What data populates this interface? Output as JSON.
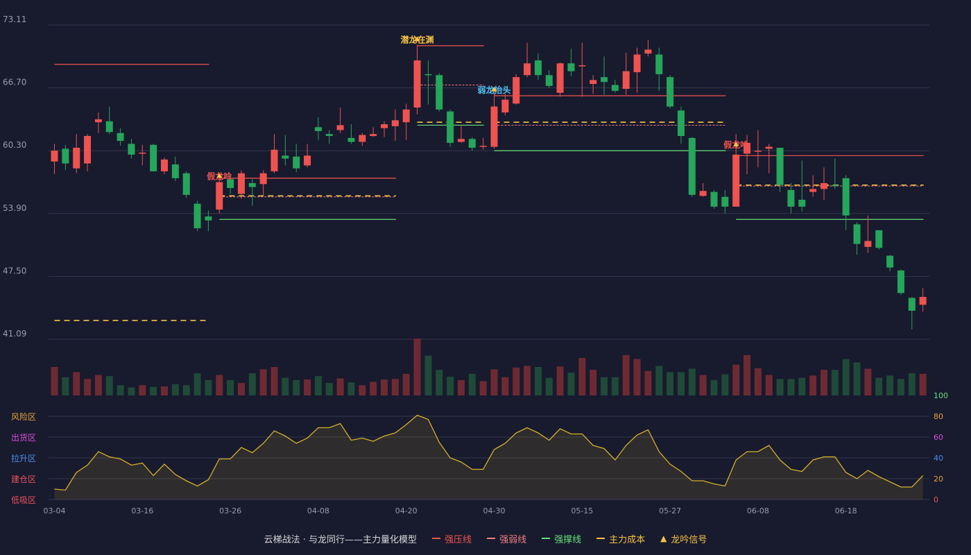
{
  "chart_data": {
    "type": "candlestick",
    "price_axis": {
      "ticks": [
        "73.11",
        "66.70",
        "60.30",
        "53.90",
        "47.50",
        "41.09"
      ],
      "ylim": [
        41.09,
        73.11
      ]
    },
    "x_labels": [
      {
        "i": 0,
        "text": "03-04"
      },
      {
        "i": 8,
        "text": "03-16"
      },
      {
        "i": 16,
        "text": "03-26"
      },
      {
        "i": 24,
        "text": "04-08"
      },
      {
        "i": 32,
        "text": "04-20"
      },
      {
        "i": 40,
        "text": "04-30"
      },
      {
        "i": 48,
        "text": "05-15"
      },
      {
        "i": 56,
        "text": "05-27"
      },
      {
        "i": 64,
        "text": "06-08"
      },
      {
        "i": 72,
        "text": "06-18"
      }
    ],
    "candles": [
      [
        59.2,
        60.3,
        61.0,
        57.9
      ],
      [
        60.5,
        59.0,
        60.9,
        58.3
      ],
      [
        58.5,
        60.6,
        62.0,
        58.0
      ],
      [
        59.0,
        61.8,
        62.0,
        58.2
      ],
      [
        63.2,
        63.5,
        64.2,
        62.1
      ],
      [
        63.3,
        62.2,
        64.8,
        62.0
      ],
      [
        62.1,
        61.3,
        62.6,
        60.8
      ],
      [
        61.0,
        59.9,
        61.5,
        59.5
      ],
      [
        60.0,
        60.1,
        60.9,
        58.8
      ],
      [
        60.9,
        58.2,
        61.0,
        58.2
      ],
      [
        58.2,
        59.4,
        59.6,
        57.9
      ],
      [
        58.9,
        57.5,
        59.7,
        57.2
      ],
      [
        58.0,
        55.8,
        58.2,
        55.5
      ],
      [
        54.9,
        52.4,
        55.2,
        52.1
      ],
      [
        53.6,
        53.2,
        54.2,
        52.1
      ],
      [
        54.3,
        57.1,
        57.5,
        53.9
      ],
      [
        57.4,
        56.5,
        57.9,
        55.9
      ],
      [
        55.9,
        58.0,
        58.3,
        55.4
      ],
      [
        57.0,
        56.6,
        57.4,
        54.7
      ],
      [
        56.9,
        58.0,
        58.3,
        55.8
      ],
      [
        58.2,
        60.4,
        62.0,
        58.0
      ],
      [
        59.8,
        59.5,
        61.9,
        58.8
      ],
      [
        59.7,
        58.5,
        61.0,
        58.1
      ],
      [
        58.8,
        59.8,
        61.0,
        58.6
      ],
      [
        62.7,
        62.3,
        63.7,
        61.4
      ],
      [
        62.0,
        61.8,
        62.4,
        61.0
      ],
      [
        62.4,
        62.9,
        64.7,
        62.1
      ],
      [
        61.6,
        61.2,
        63.0,
        61.0
      ],
      [
        61.2,
        61.9,
        62.1,
        60.8
      ],
      [
        61.8,
        62.0,
        62.7,
        61.7
      ],
      [
        62.6,
        63.0,
        63.3,
        61.7
      ],
      [
        62.8,
        63.4,
        64.5,
        61.3
      ],
      [
        63.2,
        64.5,
        65.1,
        61.4
      ],
      [
        64.7,
        69.5,
        71.1,
        64.0
      ],
      [
        68.1,
        68.0,
        69.5,
        65.0
      ],
      [
        68.0,
        64.5,
        68.2,
        64.3
      ],
      [
        64.3,
        61.1,
        64.5,
        60.7
      ],
      [
        61.2,
        61.5,
        62.9,
        61.1
      ],
      [
        61.5,
        60.6,
        61.7,
        60.3
      ],
      [
        60.8,
        60.8,
        61.6,
        60.4
      ],
      [
        60.7,
        64.8,
        66.6,
        60.5
      ],
      [
        64.2,
        65.5,
        66.1,
        63.9
      ],
      [
        65.1,
        67.8,
        68.1,
        65.0
      ],
      [
        68.0,
        69.2,
        71.3,
        67.8
      ],
      [
        69.5,
        68.0,
        70.2,
        67.5
      ],
      [
        68.0,
        66.9,
        68.5,
        66.7
      ],
      [
        66.2,
        69.2,
        69.3,
        65.8
      ],
      [
        69.2,
        68.4,
        70.7,
        67.9
      ],
      [
        68.9,
        69.0,
        71.3,
        65.8
      ],
      [
        67.1,
        67.5,
        68.0,
        66.1
      ],
      [
        67.8,
        67.3,
        69.9,
        66.0
      ],
      [
        67.0,
        66.4,
        67.5,
        66.2
      ],
      [
        66.6,
        68.4,
        70.3,
        66.0
      ],
      [
        68.3,
        70.1,
        70.8,
        66.2
      ],
      [
        70.2,
        70.6,
        71.6,
        69.9
      ],
      [
        70.1,
        68.1,
        70.8,
        66.4
      ],
      [
        67.8,
        64.8,
        68.0,
        64.6
      ],
      [
        64.4,
        61.8,
        64.8,
        61.0
      ],
      [
        61.6,
        55.8,
        61.7,
        55.6
      ],
      [
        55.7,
        56.2,
        57.0,
        55.6
      ],
      [
        56.1,
        54.6,
        56.3,
        54.4
      ],
      [
        55.6,
        54.6,
        56.3,
        53.9
      ],
      [
        54.6,
        59.9,
        62.0,
        54.6
      ],
      [
        60.0,
        61.1,
        61.9,
        57.9
      ],
      [
        60.3,
        60.3,
        62.4,
        58.6
      ],
      [
        60.5,
        60.7,
        61.0,
        58.0
      ],
      [
        60.6,
        56.8,
        60.6,
        56.1
      ],
      [
        56.3,
        54.6,
        57.0,
        53.9
      ],
      [
        55.3,
        54.6,
        59.3,
        54.1
      ],
      [
        56.1,
        56.4,
        57.8,
        55.6
      ],
      [
        56.4,
        57.0,
        58.6,
        55.3
      ],
      [
        56.8,
        56.7,
        59.5,
        56.4
      ],
      [
        57.5,
        53.7,
        57.8,
        52.2
      ],
      [
        52.8,
        50.8,
        53.0,
        49.7
      ],
      [
        50.5,
        51.1,
        53.7,
        49.9
      ],
      [
        52.2,
        50.4,
        52.2,
        50.2
      ],
      [
        49.6,
        48.4,
        49.7,
        48.0
      ],
      [
        48.1,
        45.8,
        48.2,
        45.6
      ],
      [
        45.3,
        44.0,
        45.4,
        42.1
      ],
      [
        44.6,
        45.4,
        46.3,
        43.9
      ]
    ],
    "volume": [
      0.5,
      0.32,
      0.41,
      0.29,
      0.36,
      0.34,
      0.18,
      0.14,
      0.18,
      0.15,
      0.16,
      0.2,
      0.18,
      0.39,
      0.27,
      0.36,
      0.27,
      0.22,
      0.39,
      0.46,
      0.5,
      0.31,
      0.27,
      0.28,
      0.34,
      0.22,
      0.3,
      0.23,
      0.18,
      0.24,
      0.28,
      0.29,
      0.38,
      1.0,
      0.7,
      0.45,
      0.33,
      0.27,
      0.38,
      0.25,
      0.46,
      0.32,
      0.49,
      0.52,
      0.5,
      0.31,
      0.51,
      0.4,
      0.66,
      0.45,
      0.32,
      0.32,
      0.71,
      0.64,
      0.43,
      0.52,
      0.41,
      0.41,
      0.47,
      0.36,
      0.27,
      0.37,
      0.54,
      0.71,
      0.48,
      0.36,
      0.29,
      0.29,
      0.31,
      0.35,
      0.45,
      0.45,
      0.64,
      0.58,
      0.47,
      0.31,
      0.35,
      0.29,
      0.39,
      0.38
    ],
    "levels": [
      {
        "type": "resistance",
        "from": 0,
        "to": 14,
        "value": 69.1
      },
      {
        "type": "cost",
        "from": 0,
        "to": 14,
        "value": 43.0
      },
      {
        "type": "resistance",
        "from": 15,
        "to": 31,
        "value": 57.5
      },
      {
        "type": "weak",
        "from": 15,
        "to": 31,
        "value": 55.6
      },
      {
        "type": "cost",
        "from": 15,
        "to": 31,
        "value": 55.7
      },
      {
        "type": "support",
        "from": 15,
        "to": 31,
        "value": 53.3
      },
      {
        "type": "resistance",
        "from": 33,
        "to": 39,
        "value": 71.0
      },
      {
        "type": "weak",
        "from": 33,
        "to": 39,
        "value": 67.0
      },
      {
        "type": "cost",
        "from": 33,
        "to": 39,
        "value": 63.2
      },
      {
        "type": "support",
        "from": 33,
        "to": 39,
        "value": 62.9
      },
      {
        "type": "resistance",
        "from": 40,
        "to": 61,
        "value": 65.9
      },
      {
        "type": "cost",
        "from": 40,
        "to": 61,
        "value": 63.2
      },
      {
        "type": "weak",
        "from": 40,
        "to": 61,
        "value": 62.9
      },
      {
        "type": "support",
        "from": 40,
        "to": 61,
        "value": 60.3
      },
      {
        "type": "resistance",
        "from": 62,
        "to": 79,
        "value": 59.8
      },
      {
        "type": "cost",
        "from": 62,
        "to": 79,
        "value": 56.8
      },
      {
        "type": "weak",
        "from": 62,
        "to": 79,
        "value": 56.7
      },
      {
        "type": "support",
        "from": 62,
        "to": 79,
        "value": 53.3
      }
    ],
    "signals": [
      {
        "i": 15,
        "text": "假龙吟",
        "color": "#ef5350",
        "y": 57.4
      },
      {
        "i": 33,
        "text": "潜龙在渊",
        "color": "#f6c343",
        "y": 71.3
      },
      {
        "i": 40,
        "text": "弱龙抬头",
        "color": "#4fc3f7",
        "y": 66.2
      },
      {
        "i": 62,
        "text": "假龙吟",
        "color": "#ef5350",
        "y": 60.6
      }
    ],
    "indicator": {
      "ylim": [
        0,
        100
      ],
      "ticks": [
        "100",
        "80",
        "60",
        "40",
        "20",
        "0"
      ],
      "zones": [
        "风险区",
        "出货区",
        "拉升区",
        "建仓区",
        "低吸区"
      ],
      "values": [
        10,
        9,
        26,
        33,
        46,
        41,
        39,
        33,
        35,
        23,
        34,
        24,
        18,
        13,
        19,
        39,
        39,
        50,
        45,
        54,
        66,
        61,
        54,
        59,
        69,
        69,
        73,
        57,
        59,
        56,
        61,
        64,
        72,
        81,
        77,
        55,
        40,
        36,
        29,
        29,
        48,
        54,
        64,
        69,
        64,
        57,
        68,
        63,
        63,
        52,
        49,
        38,
        52,
        62,
        67,
        46,
        34,
        27,
        18,
        18,
        15,
        13,
        38,
        46,
        46,
        52,
        38,
        29,
        27,
        38,
        41,
        41,
        26,
        20,
        28,
        22,
        17,
        12,
        12,
        23
      ]
    }
  },
  "legend": {
    "model_label": "云梯战法 · 与龙同行——主力量化模型",
    "items": [
      {
        "key": "resistance",
        "label": "强压线",
        "symbol": "line"
      },
      {
        "key": "weak",
        "label": "强弱线",
        "symbol": "dashed"
      },
      {
        "key": "support",
        "label": "强撑线",
        "symbol": "line"
      },
      {
        "key": "cost",
        "label": "主力成本",
        "symbol": "dashed"
      },
      {
        "key": "signal",
        "label": "龙吟信号",
        "symbol": "triangle"
      }
    ]
  },
  "colors": {
    "background": "#181a2e",
    "up": "#ef5350",
    "down": "#26a65b",
    "up_volume": "#6e2a32",
    "down_volume": "#1f4a38",
    "resistance": "#ef5350",
    "weak": "#f08080",
    "support": "#66e07a",
    "cost": "#f6c343",
    "signal": "#f6c343",
    "indicator_line": "#d4b12b",
    "grid": "#34374e",
    "axis_text": "#9a9cab",
    "zone_colors": [
      "#e8a33a",
      "#d94fd9",
      "#4d8fe8",
      "#e8545a",
      "#e8545a"
    ],
    "tick_colors": [
      "#66e07a",
      "#e8a33a",
      "#d94fd9",
      "#4d8fe8",
      "#e8a33a",
      "#e8545a"
    ]
  }
}
